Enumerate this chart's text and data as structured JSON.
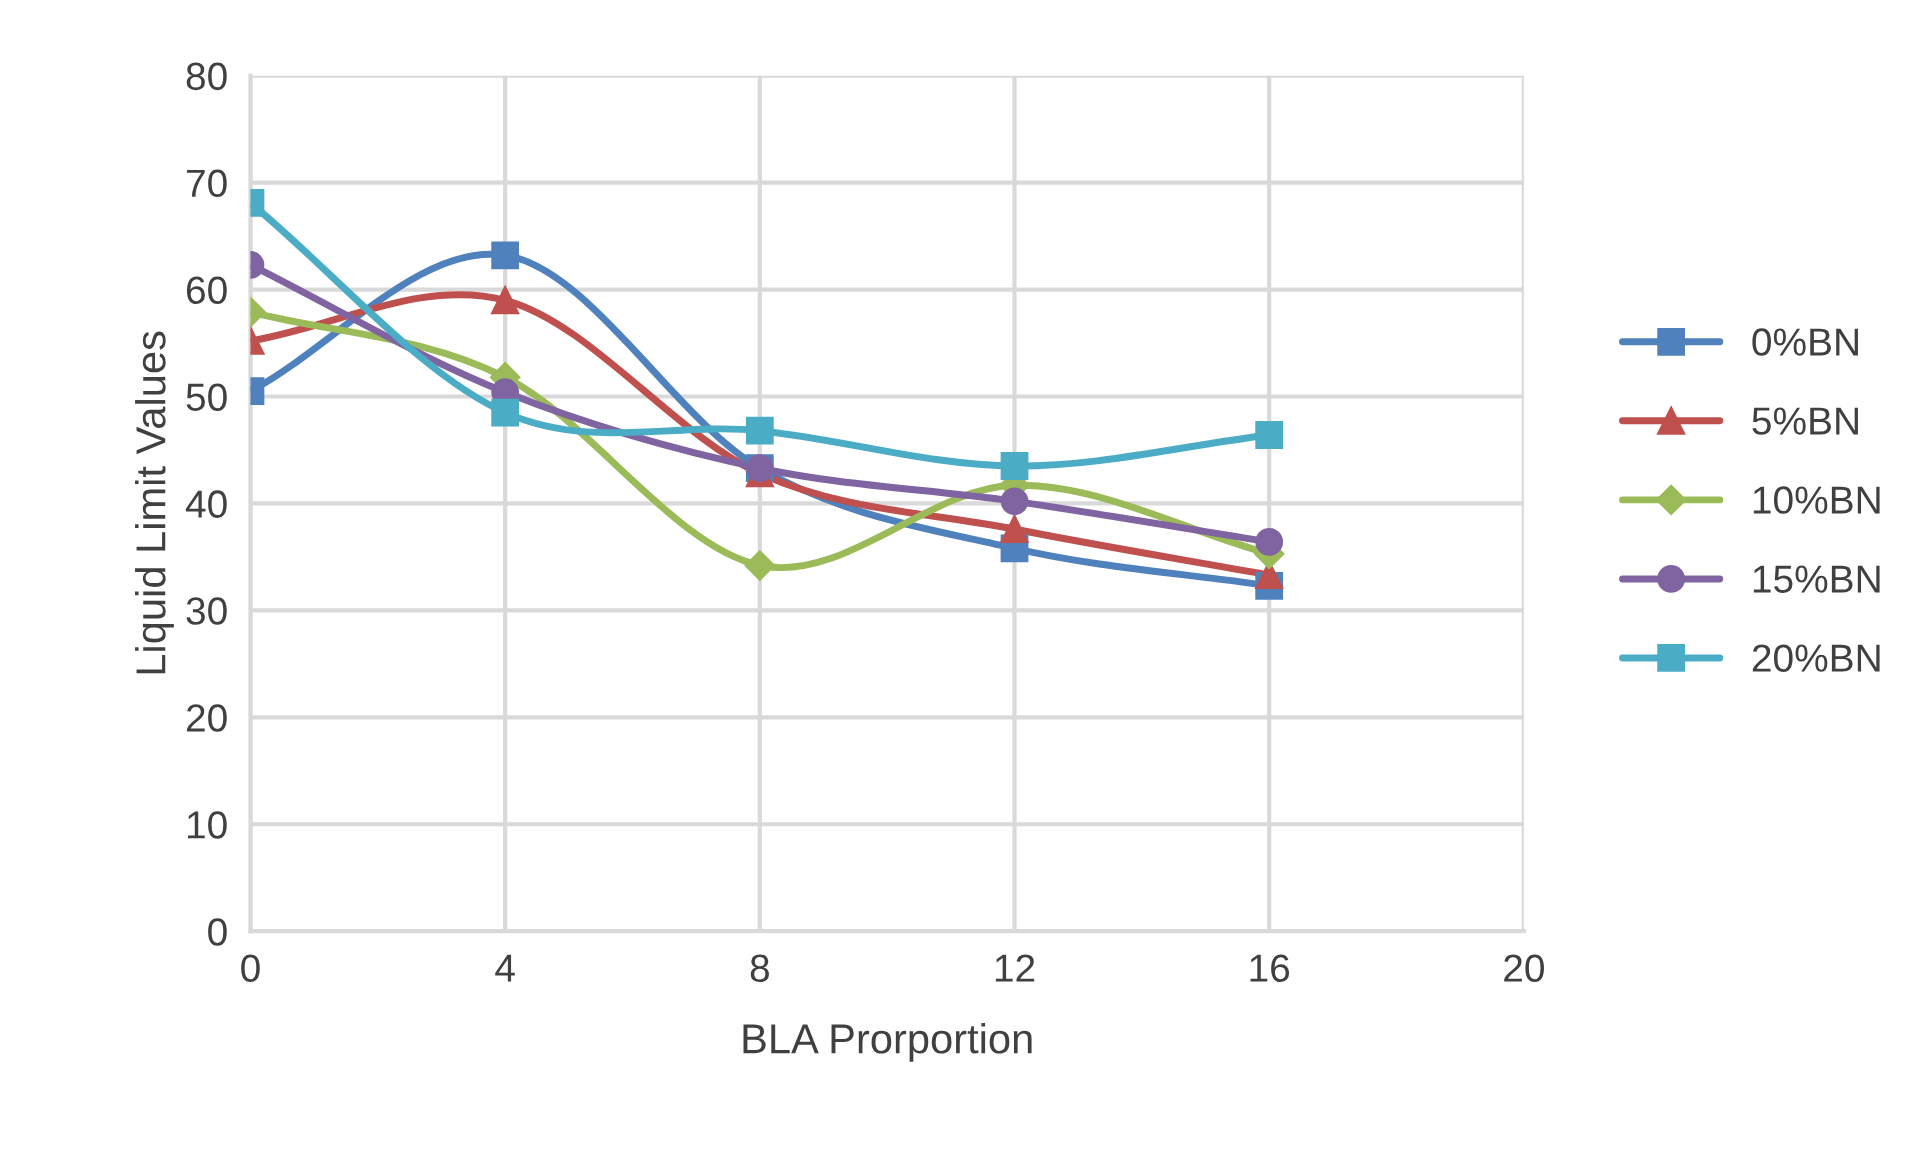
{
  "chart_data": {
    "type": "line",
    "xlabel": "BLA Prorportion",
    "ylabel": "Liquid Limit Values",
    "x": [
      0,
      4,
      8,
      12,
      16
    ],
    "series": [
      {
        "name": "0%BN",
        "color": "#4f81bd",
        "marker": "square",
        "values": [
          50.5,
          63.2,
          43.3,
          35.8,
          32.3
        ]
      },
      {
        "name": "5%BN",
        "color": "#c0504d",
        "marker": "triangle",
        "values": [
          55.2,
          59.0,
          42.8,
          37.6,
          33.3
        ]
      },
      {
        "name": "10%BN",
        "color": "#9bbb59",
        "marker": "diamond",
        "values": [
          57.9,
          51.8,
          34.2,
          41.7,
          35.3
        ]
      },
      {
        "name": "15%BN",
        "color": "#8064a2",
        "marker": "circle",
        "values": [
          62.3,
          50.4,
          43.3,
          40.2,
          36.4
        ]
      },
      {
        "name": "20%BN",
        "color": "#4bacc6",
        "marker": "square",
        "values": [
          68.1,
          48.5,
          46.8,
          43.5,
          46.4
        ]
      }
    ],
    "xlim": [
      0,
      20
    ],
    "xticks": [
      0,
      4,
      8,
      12,
      16,
      20
    ],
    "ylim": [
      0,
      80
    ],
    "yticks": [
      0,
      10,
      20,
      30,
      40,
      50,
      60,
      70,
      80
    ],
    "grid": true,
    "legend": "right",
    "line_style": "solid"
  }
}
